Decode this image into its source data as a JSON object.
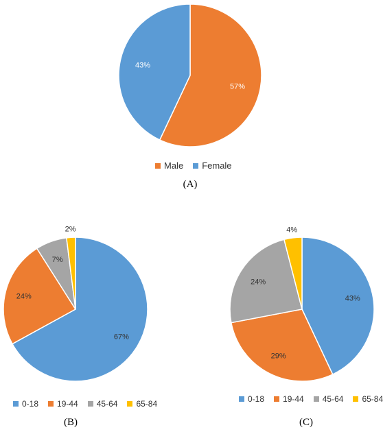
{
  "chart_data": [
    {
      "type": "pie",
      "panel": "(A)",
      "categories": [
        "Male",
        "Female"
      ],
      "values": [
        57,
        43
      ],
      "labels": [
        "57%",
        "43%"
      ],
      "colors": [
        "#ED7D31",
        "#5B9BD5"
      ],
      "legend_position": "bottom"
    },
    {
      "type": "pie",
      "panel": "(B)",
      "categories": [
        "0-18",
        "19-44",
        "45-64",
        "65-84"
      ],
      "values": [
        67,
        24,
        7,
        2
      ],
      "labels": [
        "67%",
        "24%",
        "7%",
        "2%"
      ],
      "colors": [
        "#5B9BD5",
        "#ED7D31",
        "#A5A5A5",
        "#FFC000"
      ],
      "legend_position": "bottom"
    },
    {
      "type": "pie",
      "panel": "(C)",
      "categories": [
        "0-18",
        "19-44",
        "45-64",
        "65-84"
      ],
      "values": [
        43,
        29,
        24,
        4
      ],
      "labels": [
        "43%",
        "29%",
        "24%",
        "4%"
      ],
      "colors": [
        "#5B9BD5",
        "#ED7D31",
        "#A5A5A5",
        "#FFC000"
      ],
      "legend_position": "bottom"
    }
  ],
  "captions": [
    "(A)",
    "(B)",
    "(C)"
  ]
}
